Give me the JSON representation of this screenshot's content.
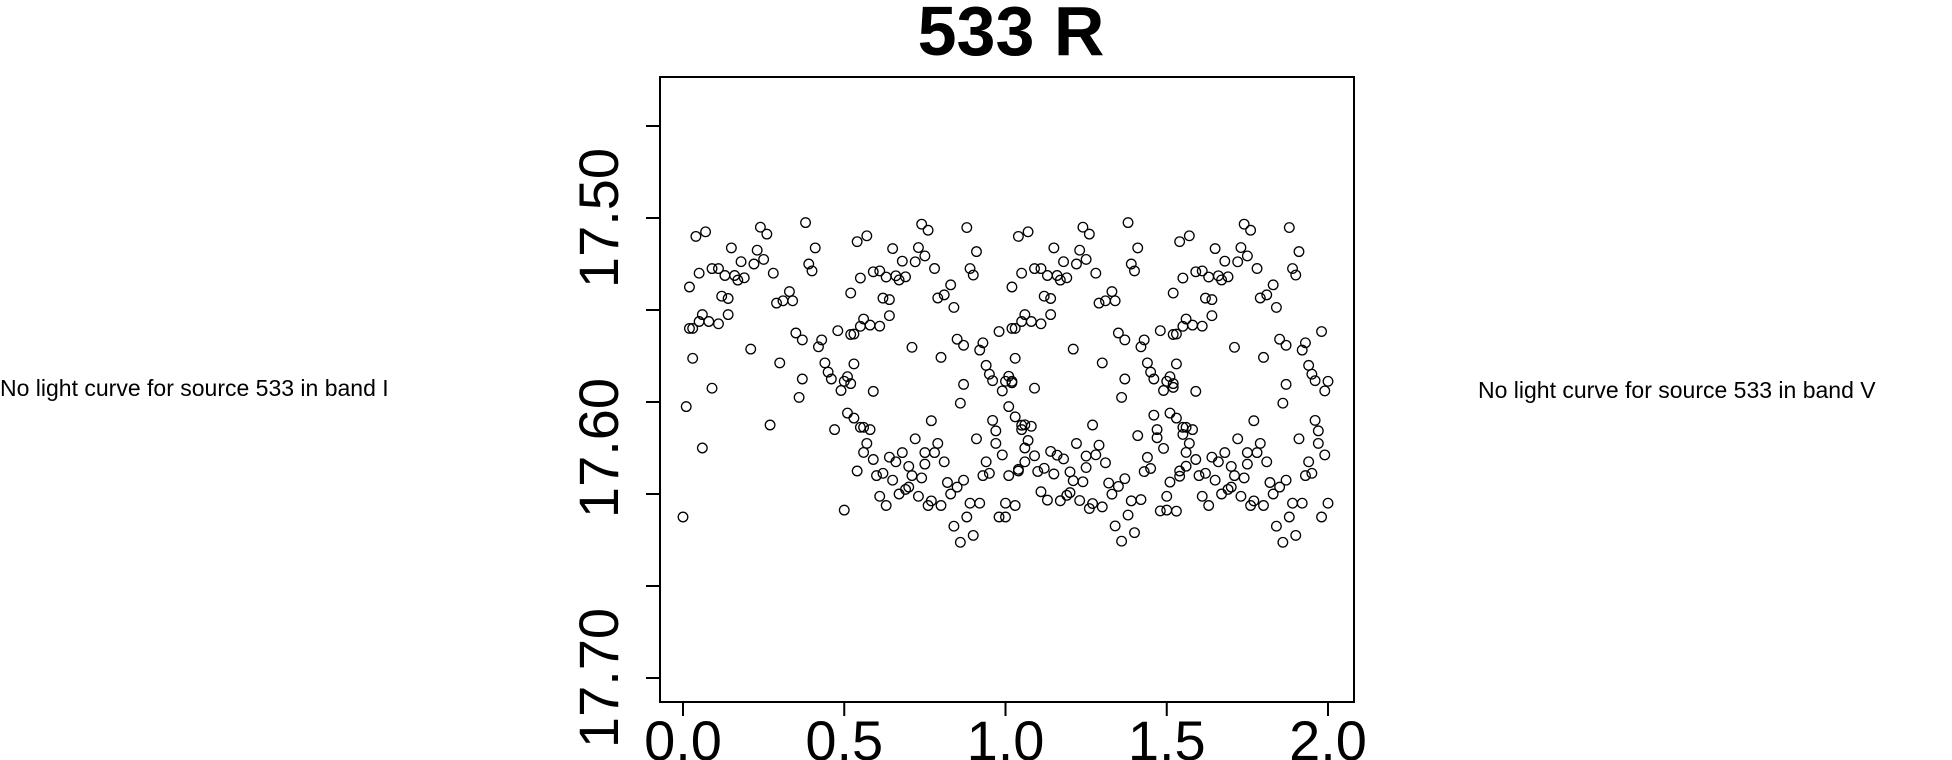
{
  "notes": {
    "left": "No light curve for source 533 in band I",
    "right": "No light curve for source 533 in band V"
  },
  "chart_data": {
    "type": "scatter",
    "title": "533 R",
    "xlabel": "",
    "ylabel": "",
    "xlim": [
      -0.04,
      2.04
    ],
    "ylim": [
      17.72,
      17.45
    ],
    "y_reversed": true,
    "x_ticks": [
      "0.0",
      "0.5",
      "1.0",
      "1.5",
      "2.0"
    ],
    "y_ticks": [
      "17.50",
      "17.60",
      "17.70"
    ],
    "marker": "open-circle",
    "grid": false,
    "legend": "none",
    "colors": {
      "marker": "#000000",
      "axis": "#000000"
    },
    "points_base": [
      [
        0.0,
        17.63
      ],
      [
        0.01,
        17.582
      ],
      [
        0.02,
        17.53
      ],
      [
        0.02,
        17.548
      ],
      [
        0.03,
        17.561
      ],
      [
        0.03,
        17.548
      ],
      [
        0.04,
        17.508
      ],
      [
        0.05,
        17.545
      ],
      [
        0.05,
        17.524
      ],
      [
        0.06,
        17.6
      ],
      [
        0.06,
        17.542
      ],
      [
        0.07,
        17.506
      ],
      [
        0.08,
        17.545
      ],
      [
        0.09,
        17.574
      ],
      [
        0.09,
        17.522
      ],
      [
        0.11,
        17.546
      ],
      [
        0.11,
        17.522
      ],
      [
        0.12,
        17.534
      ],
      [
        0.13,
        17.525
      ],
      [
        0.14,
        17.535
      ],
      [
        0.14,
        17.542
      ],
      [
        0.15,
        17.513
      ],
      [
        0.16,
        17.525
      ],
      [
        0.17,
        17.527
      ],
      [
        0.18,
        17.519
      ],
      [
        0.19,
        17.526
      ],
      [
        0.21,
        17.557
      ],
      [
        0.22,
        17.52
      ],
      [
        0.23,
        17.514
      ],
      [
        0.24,
        17.504
      ],
      [
        0.25,
        17.518
      ],
      [
        0.26,
        17.507
      ],
      [
        0.27,
        17.59
      ],
      [
        0.28,
        17.524
      ],
      [
        0.29,
        17.537
      ],
      [
        0.3,
        17.563
      ],
      [
        0.31,
        17.536
      ],
      [
        0.33,
        17.532
      ],
      [
        0.34,
        17.536
      ],
      [
        0.35,
        17.55
      ],
      [
        0.36,
        17.578
      ],
      [
        0.37,
        17.57
      ],
      [
        0.37,
        17.553
      ],
      [
        0.38,
        17.502
      ],
      [
        0.39,
        17.52
      ],
      [
        0.4,
        17.523
      ],
      [
        0.41,
        17.513
      ],
      [
        0.42,
        17.556
      ],
      [
        0.43,
        17.553
      ],
      [
        0.44,
        17.563
      ],
      [
        0.45,
        17.567
      ],
      [
        0.46,
        17.57
      ],
      [
        0.47,
        17.592
      ],
      [
        0.48,
        17.549
      ],
      [
        0.49,
        17.575
      ],
      [
        0.5,
        17.571
      ],
      [
        0.51,
        17.569
      ],
      [
        0.52,
        17.572
      ],
      [
        0.53,
        17.587
      ],
      [
        0.54,
        17.61
      ],
      [
        0.55,
        17.591
      ],
      [
        0.56,
        17.591
      ],
      [
        0.57,
        17.598
      ],
      [
        0.58,
        17.592
      ],
      [
        0.59,
        17.605
      ],
      [
        0.6,
        17.612
      ],
      [
        0.61,
        17.621
      ],
      [
        0.62,
        17.611
      ],
      [
        0.63,
        17.625
      ],
      [
        0.64,
        17.604
      ],
      [
        0.65,
        17.614
      ],
      [
        0.66,
        17.606
      ],
      [
        0.67,
        17.62
      ],
      [
        0.68,
        17.602
      ],
      [
        0.69,
        17.618
      ],
      [
        0.7,
        17.617
      ],
      [
        0.7,
        17.608
      ],
      [
        0.71,
        17.612
      ],
      [
        0.72,
        17.596
      ],
      [
        0.73,
        17.621
      ],
      [
        0.74,
        17.613
      ],
      [
        0.75,
        17.602
      ],
      [
        0.75,
        17.607
      ],
      [
        0.76,
        17.625
      ],
      [
        0.77,
        17.623
      ],
      [
        0.78,
        17.602
      ],
      [
        0.79,
        17.598
      ],
      [
        0.8,
        17.625
      ],
      [
        0.81,
        17.606
      ],
      [
        0.82,
        17.615
      ],
      [
        0.83,
        17.62
      ],
      [
        0.84,
        17.634
      ],
      [
        0.85,
        17.617
      ],
      [
        0.86,
        17.641
      ],
      [
        0.87,
        17.614
      ],
      [
        0.88,
        17.63
      ],
      [
        0.89,
        17.624
      ],
      [
        0.9,
        17.638
      ],
      [
        0.91,
        17.596
      ],
      [
        0.92,
        17.624
      ],
      [
        0.93,
        17.612
      ],
      [
        0.94,
        17.606
      ],
      [
        0.95,
        17.611
      ],
      [
        0.96,
        17.588
      ],
      [
        0.97,
        17.598
      ],
      [
        0.98,
        17.63
      ],
      [
        0.99,
        17.603
      ],
      [
        1.0,
        17.624
      ],
      [
        1.01,
        17.612
      ],
      [
        1.02,
        17.571
      ],
      [
        1.03,
        17.625
      ],
      [
        1.04,
        17.61
      ],
      [
        1.05,
        17.592
      ],
      [
        1.06,
        17.606
      ]
    ]
  }
}
